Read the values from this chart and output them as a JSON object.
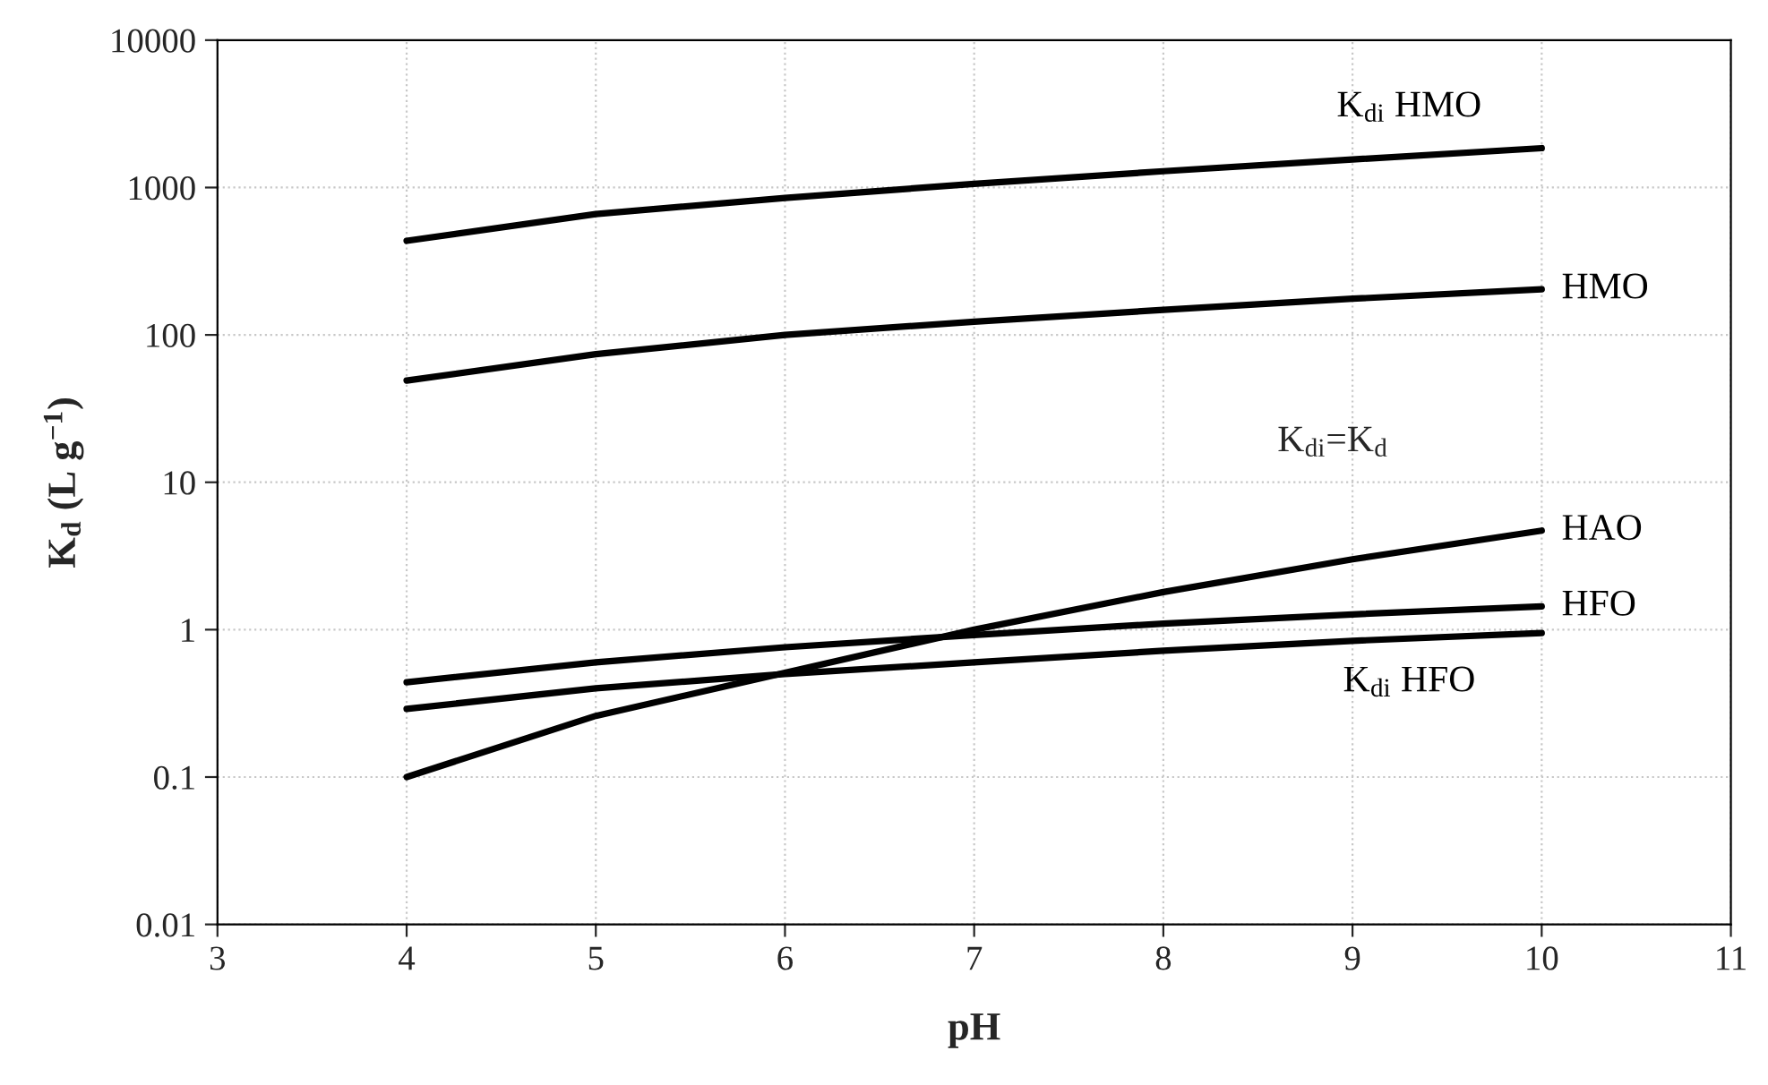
{
  "chart_data": {
    "type": "line",
    "xlabel": "pH",
    "ylabel": "K$_{d}$ (L g$^{−1}$)",
    "log": "y",
    "grid": true,
    "legend": false,
    "marker": "none",
    "line_style": "solid",
    "x": [
      4,
      5,
      6,
      7,
      8,
      9,
      10
    ],
    "xlim": [
      3,
      11
    ],
    "xticks": [
      3,
      4,
      5,
      6,
      7,
      8,
      9,
      10,
      11
    ],
    "ylim": [
      0.01,
      10000
    ],
    "yticks": [
      0.01,
      0.1,
      1,
      10,
      100,
      1000,
      10000
    ],
    "series": [
      {
        "name": "K$_{di}$ HMO",
        "color": "#000000",
        "values": [
          435,
          660,
          850,
          1060,
          1290,
          1550,
          1850
        ]
      },
      {
        "name": "HMO",
        "color": "#000000",
        "values": [
          49,
          74,
          100,
          123,
          148,
          176,
          204
        ]
      },
      {
        "name": "HAO",
        "color": "#000000",
        "values": [
          0.1,
          0.26,
          0.51,
          1.0,
          1.8,
          3.0,
          4.7
        ]
      },
      {
        "name": "HFO",
        "color": "#000000",
        "values": [
          0.44,
          0.6,
          0.76,
          0.92,
          1.1,
          1.27,
          1.44
        ]
      },
      {
        "name": "K$_{di}$ HFO",
        "color": "#000000",
        "values": [
          0.29,
          0.4,
          0.5,
          0.6,
          0.72,
          0.84,
          0.95
        ]
      }
    ],
    "annotations": [
      "K$_{di}$=K$_{d}$"
    ]
  }
}
